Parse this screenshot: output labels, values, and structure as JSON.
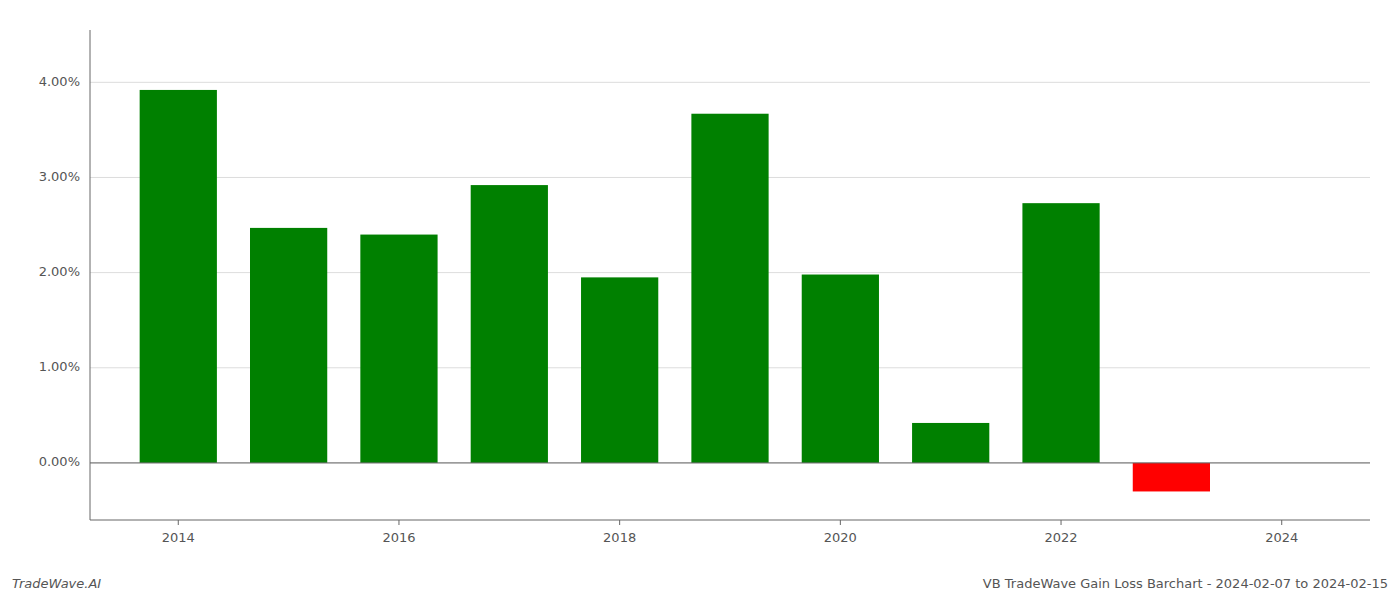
{
  "chart_data": {
    "type": "bar",
    "title": "VB TradeWave Gain Loss Barchart - 2024-02-07 to 2024-02-15",
    "annotations": [
      "TradeWave.AI"
    ],
    "x": [
      2014,
      2015,
      2016,
      2017,
      2018,
      2019,
      2020,
      2021,
      2022,
      2023
    ],
    "values": [
      0.0392,
      0.0247,
      0.024,
      0.0292,
      0.0195,
      0.0367,
      0.0198,
      0.0042,
      0.0273,
      -0.003
    ],
    "colors": [
      "#008000",
      "#008000",
      "#008000",
      "#008000",
      "#008000",
      "#008000",
      "#008000",
      "#008000",
      "#008000",
      "#ff0000"
    ],
    "xlim": [
      2013.2,
      2024.8
    ],
    "xticks": [
      2014,
      2016,
      2018,
      2020,
      2022,
      2024
    ],
    "ylim": [
      -0.006,
      0.0455
    ],
    "yticks": [
      {
        "value": 0.0,
        "label": "0.00%"
      },
      {
        "value": 0.01,
        "label": "1.00%"
      },
      {
        "value": 0.02,
        "label": "2.00%"
      },
      {
        "value": 0.03,
        "label": "3.00%"
      },
      {
        "value": 0.04,
        "label": "4.00%"
      }
    ],
    "grid": true
  }
}
